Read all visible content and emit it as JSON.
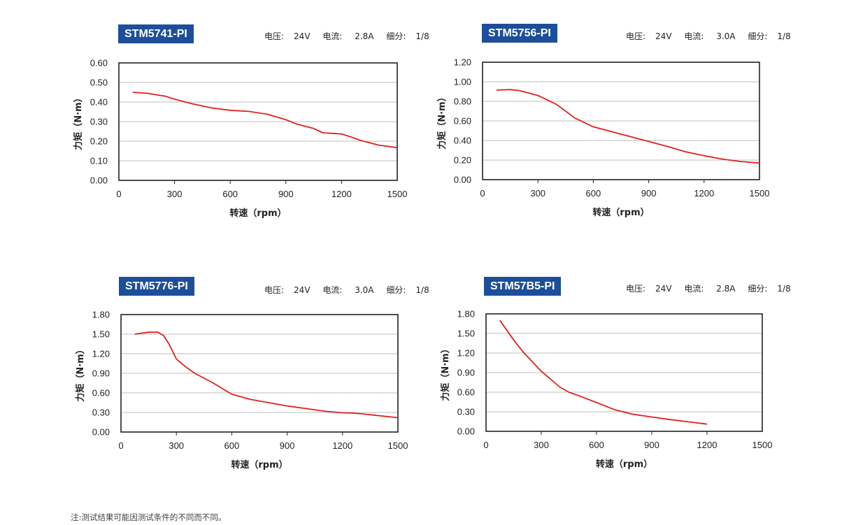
{
  "footnote": "注:测试结果可能因测试条件的不同而不同。",
  "spec_labels": {
    "voltage": "电压:",
    "current": "电流: ",
    "microstep": "细分:"
  },
  "chart_data": [
    {
      "type": "line",
      "model": "STM5741-PI",
      "specs": {
        "voltage": "24V",
        "current": "2.8A",
        "microstep": "1/8"
      },
      "xlabel": "转速（rpm）",
      "ylabel": "力矩（N·m）",
      "xlim": [
        0,
        1500
      ],
      "ylim": [
        0,
        0.6
      ],
      "xticks": [
        "0",
        "300",
        "600",
        "900",
        "1200",
        "1500"
      ],
      "yticks": [
        "0.00",
        "0.10",
        "0.20",
        "0.30",
        "0.40",
        "0.50",
        "0.60"
      ],
      "series": [
        {
          "name": "torque",
          "color": "#e02020",
          "x": [
            75,
            150,
            250,
            300,
            400,
            500,
            600,
            700,
            800,
            900,
            950,
            1000,
            1050,
            1100,
            1150,
            1200,
            1250,
            1300,
            1400,
            1500
          ],
          "y": [
            0.45,
            0.445,
            0.43,
            0.415,
            0.39,
            0.37,
            0.358,
            0.352,
            0.338,
            0.31,
            0.29,
            0.277,
            0.265,
            0.243,
            0.24,
            0.237,
            0.222,
            0.205,
            0.18,
            0.167
          ]
        }
      ]
    },
    {
      "type": "line",
      "model": "STM5756-PI",
      "specs": {
        "voltage": "24V",
        "current": "3.0A",
        "microstep": "1/8"
      },
      "xlabel": "转速（rpm）",
      "ylabel": "力矩（N·m）",
      "xlim": [
        0,
        1500
      ],
      "ylim": [
        0,
        1.2
      ],
      "xticks": [
        "0",
        "300",
        "600",
        "900",
        "1200",
        "1500"
      ],
      "yticks": [
        "0.00",
        "0.20",
        "0.40",
        "0.60",
        "0.80",
        "1.00",
        "1.20"
      ],
      "series": [
        {
          "name": "torque",
          "color": "#e02020",
          "x": [
            75,
            150,
            200,
            300,
            400,
            450,
            500,
            600,
            700,
            800,
            900,
            1000,
            1100,
            1200,
            1300,
            1400,
            1500
          ],
          "y": [
            0.915,
            0.92,
            0.91,
            0.86,
            0.77,
            0.7,
            0.63,
            0.54,
            0.49,
            0.44,
            0.39,
            0.34,
            0.285,
            0.245,
            0.21,
            0.185,
            0.17
          ]
        }
      ]
    },
    {
      "type": "line",
      "model": "STM5776-PI",
      "specs": {
        "voltage": "24V",
        "current": "3.0A",
        "microstep": "1/8"
      },
      "xlabel": "转速（rpm）",
      "ylabel": "力矩（N·m）",
      "xlim": [
        0,
        1500
      ],
      "ylim": [
        0,
        1.8
      ],
      "xticks": [
        "0",
        "300",
        "600",
        "900",
        "1200",
        "1500"
      ],
      "yticks": [
        "0.00",
        "0.30",
        "0.60",
        "0.90",
        "1.20",
        "1.50",
        "1.80"
      ],
      "series": [
        {
          "name": "torque",
          "color": "#e02020",
          "x": [
            75,
            150,
            200,
            230,
            260,
            300,
            350,
            400,
            500,
            600,
            700,
            800,
            900,
            1000,
            1100,
            1200,
            1250,
            1300,
            1400,
            1500
          ],
          "y": [
            1.5,
            1.53,
            1.53,
            1.48,
            1.35,
            1.12,
            1.0,
            0.9,
            0.75,
            0.58,
            0.5,
            0.45,
            0.4,
            0.36,
            0.32,
            0.295,
            0.29,
            0.28,
            0.25,
            0.22
          ]
        }
      ]
    },
    {
      "type": "line",
      "model": "STM57B5-PI",
      "specs": {
        "voltage": "24V",
        "current": "2.8A",
        "microstep": "1/8"
      },
      "xlabel": "转速（rpm）",
      "ylabel": "力矩（N·m）",
      "xlim": [
        0,
        1500
      ],
      "ylim": [
        0,
        1.8
      ],
      "xticks": [
        "0",
        "300",
        "600",
        "900",
        "1200",
        "1500"
      ],
      "yticks": [
        "0.00",
        "0.30",
        "0.60",
        "0.90",
        "1.20",
        "1.50",
        "1.80"
      ],
      "series": [
        {
          "name": "torque",
          "color": "#e02020",
          "x": [
            75,
            150,
            200,
            300,
            400,
            450,
            500,
            600,
            700,
            800,
            900,
            1000,
            1100,
            1200
          ],
          "y": [
            1.7,
            1.4,
            1.22,
            0.92,
            0.68,
            0.6,
            0.55,
            0.44,
            0.33,
            0.26,
            0.22,
            0.18,
            0.145,
            0.11
          ]
        }
      ]
    }
  ]
}
